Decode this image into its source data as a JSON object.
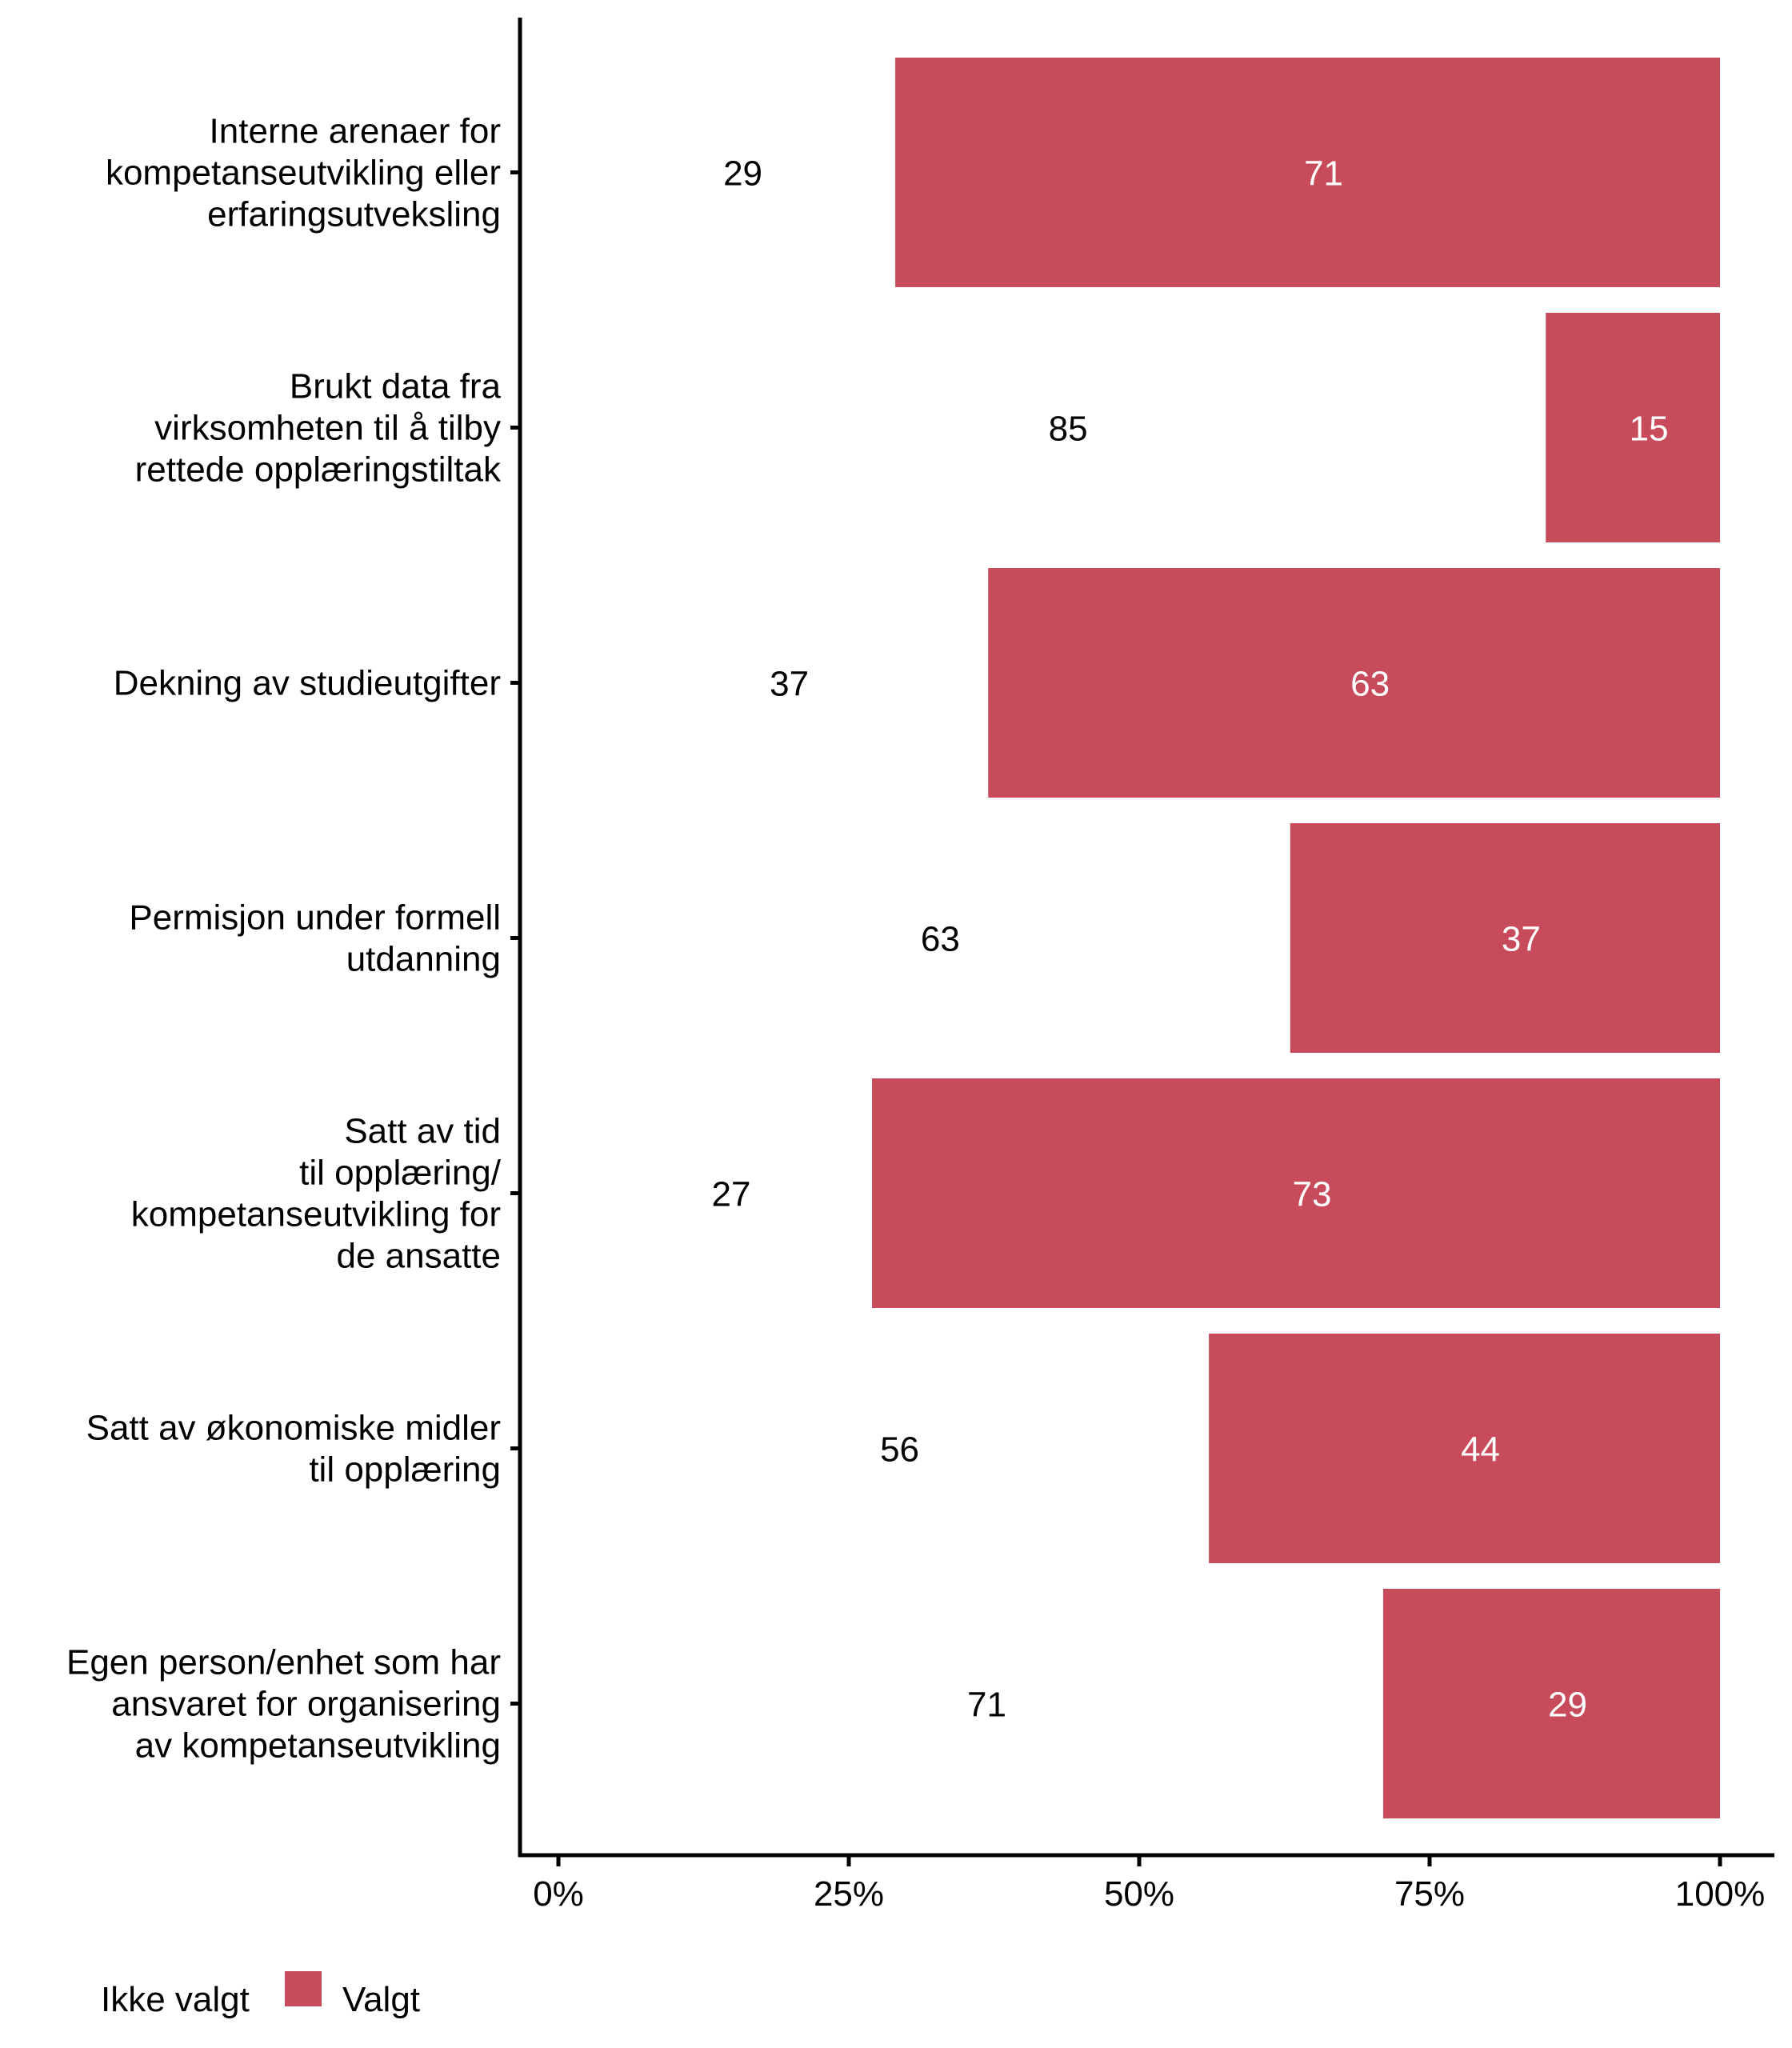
{
  "chart_data": {
    "type": "bar",
    "orientation": "horizontal",
    "stacked": true,
    "title": "",
    "xlabel": "",
    "ylabel": "",
    "xlim": [
      0,
      100
    ],
    "x_tick_labels": [
      "0%",
      "25%",
      "50%",
      "75%",
      "100%"
    ],
    "x_ticks": [
      0,
      25,
      50,
      75,
      100
    ],
    "grid": false,
    "legend_position": "bottom-left",
    "categories": [
      [
        "Interne arenaer for",
        "kompetanseutvikling eller",
        "erfaringsutveksling"
      ],
      [
        "Brukt data fra",
        "virksomheten til å tilby",
        "rettede opplæringstiltak"
      ],
      [
        "Dekning av studieutgifter"
      ],
      [
        "Permisjon under formell",
        "utdanning"
      ],
      [
        "Satt av tid",
        "til opplæring/",
        "kompetanseutvikling for",
        "de ansatte"
      ],
      [
        "Satt av økonomiske midler",
        "til opplæring"
      ],
      [
        "Egen person/enhet som har",
        "ansvaret for organisering",
        "av kompetanseutvikling"
      ]
    ],
    "series": [
      {
        "name": "Ikke valgt",
        "color": "#ffffff",
        "label_color": "#000000",
        "values": [
          29,
          85,
          37,
          63,
          27,
          56,
          71
        ]
      },
      {
        "name": "Valgt",
        "color": "#c84b5b",
        "label_color": "#ffffff",
        "values": [
          71,
          15,
          63,
          37,
          73,
          44,
          29
        ]
      }
    ]
  }
}
